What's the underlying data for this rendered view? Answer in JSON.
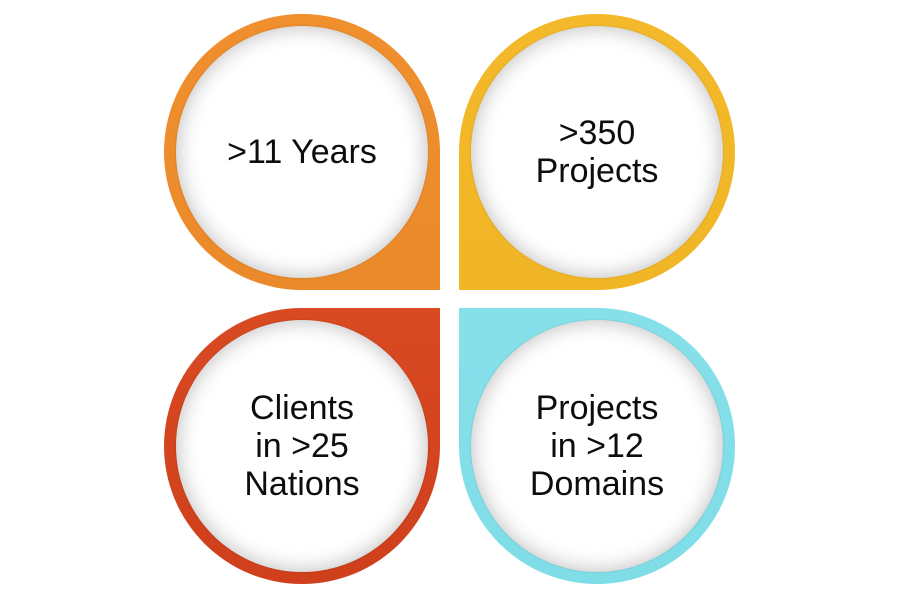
{
  "petals": [
    {
      "label": ">11 Years",
      "color": "#ef8f2e"
    },
    {
      "label": ">350\nProjects",
      "color": "#f4b92a"
    },
    {
      "label": "Clients\nin >25\nNations",
      "color": "#d84a22"
    },
    {
      "label": "Projects\nin >12\nDomains",
      "color": "#86e0ea"
    }
  ]
}
